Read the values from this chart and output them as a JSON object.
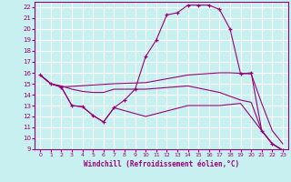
{
  "xlabel": "Windchill (Refroidissement éolien,°C)",
  "bg_color": "#c8f0f0",
  "grid_color": "#ffffff",
  "line_color": "#990077",
  "xlim": [
    -0.5,
    23.5
  ],
  "ylim": [
    9,
    22.5
  ],
  "xticks": [
    0,
    1,
    2,
    3,
    4,
    5,
    6,
    7,
    8,
    9,
    10,
    11,
    12,
    13,
    14,
    15,
    16,
    17,
    18,
    19,
    20,
    21,
    22,
    23
  ],
  "yticks": [
    9,
    10,
    11,
    12,
    13,
    14,
    15,
    16,
    17,
    18,
    19,
    20,
    21,
    22
  ],
  "series": [
    {
      "x": [
        0,
        1,
        2,
        3,
        4,
        5,
        6,
        7,
        8,
        9,
        10,
        11,
        12,
        13,
        14,
        15,
        16,
        17,
        18,
        19,
        20,
        21,
        22,
        23
      ],
      "y": [
        15.8,
        15.0,
        14.7,
        13.0,
        12.9,
        12.1,
        11.5,
        12.8,
        13.5,
        14.5,
        17.5,
        19.0,
        21.3,
        21.5,
        22.2,
        22.2,
        22.2,
        21.8,
        20.0,
        15.9,
        16.0,
        10.7,
        9.5,
        8.9
      ],
      "marker": "+"
    },
    {
      "x": [
        0,
        1,
        2,
        7,
        10,
        14,
        17,
        18,
        20,
        21,
        22,
        23
      ],
      "y": [
        15.8,
        15.0,
        14.7,
        15.0,
        15.1,
        15.8,
        16.0,
        16.0,
        15.9,
        13.2,
        10.7,
        9.5
      ],
      "marker": null
    },
    {
      "x": [
        0,
        1,
        2,
        3,
        4,
        5,
        6,
        7,
        10,
        14,
        17,
        19,
        20,
        21,
        22,
        23
      ],
      "y": [
        15.8,
        15.0,
        14.8,
        14.5,
        14.3,
        14.2,
        14.2,
        14.5,
        14.5,
        14.8,
        14.2,
        13.5,
        13.3,
        10.7,
        9.5,
        8.9
      ],
      "marker": null
    },
    {
      "x": [
        0,
        1,
        2,
        3,
        4,
        5,
        6,
        7,
        10,
        14,
        17,
        19,
        21,
        22,
        23
      ],
      "y": [
        15.8,
        15.0,
        14.7,
        13.0,
        12.9,
        12.1,
        11.5,
        12.8,
        12.0,
        13.0,
        13.0,
        13.2,
        10.7,
        9.5,
        8.9
      ],
      "marker": null
    }
  ]
}
